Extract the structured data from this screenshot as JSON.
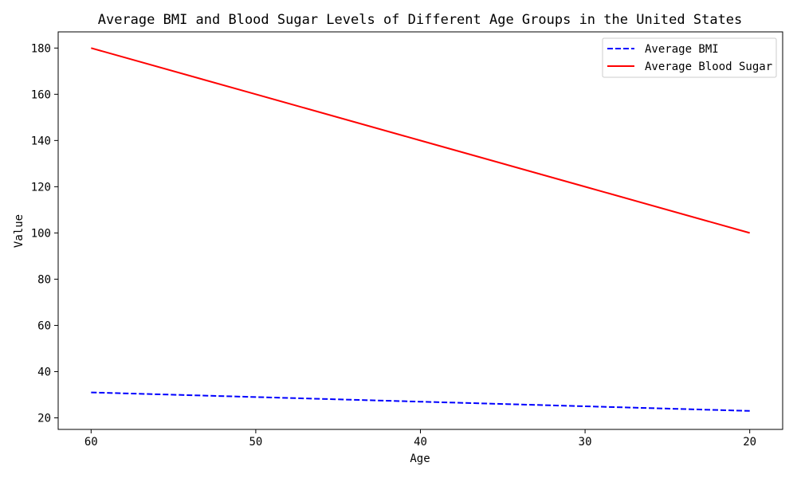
{
  "chart_data": {
    "type": "line",
    "title": "Average BMI and Blood Sugar Levels of Different Age Groups in the United States",
    "xlabel": "Age",
    "ylabel": "Value",
    "x": [
      60,
      50,
      40,
      30,
      20
    ],
    "x_reversed": true,
    "xlim": [
      62,
      18
    ],
    "ylim": [
      15,
      187
    ],
    "xticks": [
      60,
      50,
      40,
      30,
      20
    ],
    "yticks": [
      20,
      40,
      60,
      80,
      100,
      120,
      140,
      160,
      180
    ],
    "grid": false,
    "legend_position": "top-right",
    "series": [
      {
        "name": "Average BMI",
        "values": [
          31,
          29,
          27,
          25,
          23
        ],
        "color": "#0000ff",
        "line_style": "dashed"
      },
      {
        "name": "Average Blood Sugar",
        "values": [
          180,
          160,
          140,
          120,
          100
        ],
        "color": "#ff0000",
        "line_style": "solid"
      }
    ]
  }
}
